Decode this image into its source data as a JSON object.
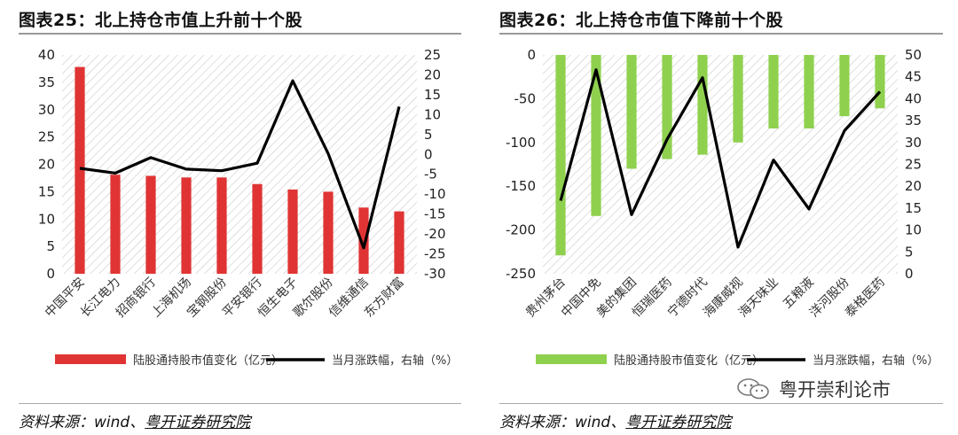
{
  "charts": {
    "left": {
      "title": "图表25：北上持仓市值上升前十个股"
    },
    "right": {
      "title": "图表26：北上持仓市值下降前十个股"
    }
  },
  "source": {
    "left": {
      "prefix": "资料来源：wind、",
      "org": "粤开证券研究院"
    },
    "right": {
      "prefix": "资料来源：wind、",
      "org": "粤开证券研究院"
    }
  },
  "brand": {
    "name": "粤开崇利论市",
    "icon": "wechat-icon"
  },
  "colors": {
    "left_bar": "#e03434",
    "right_bar": "#8fd14f",
    "line": "#000000"
  },
  "chart_data": [
    {
      "type": "bar",
      "title": "图表25：北上持仓市值上升前十个股",
      "categories": [
        "中国平安",
        "长江电力",
        "招商银行",
        "上海机场",
        "宝钢股份",
        "平安银行",
        "恒生电子",
        "歌尔股份",
        "信维通信",
        "东方财富"
      ],
      "series": [
        {
          "name": "陆股通持股市值变化（亿元）",
          "type": "bar",
          "axis": "left",
          "values": [
            37.8,
            18.1,
            17.9,
            17.6,
            17.6,
            16.4,
            15.4,
            15.0,
            12.1,
            11.4
          ]
        },
        {
          "name": "当月涨跌幅，右轴（%）",
          "type": "line",
          "axis": "right",
          "values": [
            -3.5,
            -4.7,
            -0.8,
            -3.7,
            -4.1,
            -2.2,
            18.5,
            0.2,
            -23.5,
            12.0
          ]
        }
      ],
      "ylim_left": [
        0,
        40
      ],
      "yticks_left": [
        0,
        5,
        10,
        15,
        20,
        25,
        30,
        35,
        40
      ],
      "ylim_right": [
        -30,
        25
      ],
      "yticks_right": [
        -30,
        -25,
        -20,
        -15,
        -10,
        -5,
        0,
        5,
        10,
        15,
        20,
        25
      ],
      "grid": false,
      "legend_position": "bottom"
    },
    {
      "type": "bar",
      "title": "图表26：北上持仓市值下降前十个股",
      "categories": [
        "贵州茅台",
        "中国中免",
        "美的集团",
        "恒瑞医药",
        "宁德时代",
        "海康威视",
        "海天味业",
        "五粮液",
        "洋河股份",
        "泰格医药"
      ],
      "series": [
        {
          "name": "陆股通持股市值变化（亿元）",
          "type": "bar",
          "axis": "left",
          "values": [
            -229,
            -184,
            -130,
            -119,
            -114,
            -100,
            -84,
            -84,
            -70,
            -61
          ]
        },
        {
          "name": "当月涨跌幅，右轴（%）",
          "type": "line",
          "axis": "right",
          "values": [
            16.7,
            46.6,
            13.5,
            30.7,
            44.8,
            6.1,
            26.0,
            14.8,
            32.7,
            41.6
          ]
        }
      ],
      "ylim_left": [
        -250,
        0
      ],
      "yticks_left": [
        -250,
        -200,
        -150,
        -100,
        -50,
        0
      ],
      "ylim_right": [
        0,
        50
      ],
      "yticks_right": [
        0,
        5,
        10,
        15,
        20,
        25,
        30,
        35,
        40,
        45,
        50
      ],
      "grid": false,
      "legend_position": "bottom"
    }
  ]
}
